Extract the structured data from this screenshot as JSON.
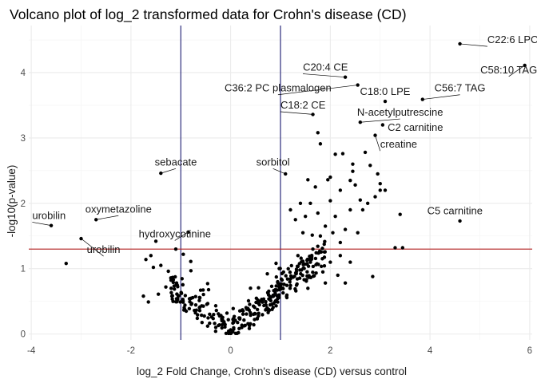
{
  "chart_data": {
    "type": "scatter",
    "title": "Volcano plot of log_2 transformed data for Crohn's disease (CD)",
    "xlabel": "log_2 Fold Change, Crohn's disease (CD) versus control",
    "ylabel": "-log10(p-value)",
    "xlim": [
      -4.05,
      6.05
    ],
    "ylim": [
      -0.09,
      4.72
    ],
    "xticks": [
      -4,
      -2,
      0,
      2,
      4,
      6
    ],
    "yticks": [
      0,
      1,
      2,
      3,
      4
    ],
    "grid": true,
    "legend": "none",
    "colors": {
      "points": "#000000",
      "fold_lines": "#191970",
      "pvalue_line": "#b22222",
      "leader": "#000000"
    },
    "reference_lines": {
      "vertical": [
        -1,
        1
      ],
      "horizontal": [
        1.3
      ]
    },
    "labels": [
      {
        "text": "C22:6 LPC",
        "x": 4.6,
        "y": 4.44,
        "tx": 5.15,
        "ty": 4.45,
        "anchor": "start"
      },
      {
        "text": "C58:10 TAG",
        "x": 5.9,
        "y": 4.11,
        "tx": 5.58,
        "ty": 3.99,
        "anchor": "middle"
      },
      {
        "text": "C20:4 CE",
        "x": 2.3,
        "y": 3.93,
        "tx": 1.45,
        "ty": 4.03,
        "anchor": "start"
      },
      {
        "text": "C36:2 PC plasmalogen",
        "x": 2.55,
        "y": 3.81,
        "tx": 0.95,
        "ty": 3.71,
        "anchor": "middle"
      },
      {
        "text": "C18:0 LPE",
        "x": 3.1,
        "y": 3.56,
        "tx": 3.1,
        "ty": 3.66,
        "anchor": "middle"
      },
      {
        "text": "C56:7 TAG",
        "x": 3.85,
        "y": 3.59,
        "tx": 4.6,
        "ty": 3.71,
        "anchor": "middle"
      },
      {
        "text": "C18:2 CE",
        "x": 1.65,
        "y": 3.36,
        "tx": 1.0,
        "ty": 3.45,
        "anchor": "start"
      },
      {
        "text": "N-acetylputrescine",
        "x": 2.6,
        "y": 3.24,
        "tx": 3.4,
        "ty": 3.34,
        "anchor": "middle"
      },
      {
        "text": "C2 carnitine",
        "x": 3.05,
        "y": 3.2,
        "tx": 3.15,
        "ty": 3.11,
        "anchor": "start"
      },
      {
        "text": "creatine",
        "x": 2.9,
        "y": 3.04,
        "tx": 3.0,
        "ty": 2.85,
        "anchor": "start"
      },
      {
        "text": "sebacate",
        "x": -1.4,
        "y": 2.46,
        "tx": -1.1,
        "ty": 2.58,
        "anchor": "middle"
      },
      {
        "text": "sorbitol",
        "x": 1.1,
        "y": 2.45,
        "tx": 0.85,
        "ty": 2.58,
        "anchor": "middle"
      },
      {
        "text": "C5 carnitine",
        "x": 4.6,
        "y": 1.73,
        "tx": 4.5,
        "ty": 1.83,
        "anchor": "middle"
      },
      {
        "text": "oxymetazoline",
        "x": -2.7,
        "y": 1.75,
        "tx": -2.25,
        "ty": 1.86,
        "anchor": "middle"
      },
      {
        "text": "urobilin",
        "x": -3.6,
        "y": 1.66,
        "tx": -3.98,
        "ty": 1.76,
        "anchor": "start"
      },
      {
        "text": "hydroxycotinine",
        "x": -0.85,
        "y": 1.56,
        "tx": -1.12,
        "ty": 1.48,
        "anchor": "middle"
      },
      {
        "text": "urobilin",
        "x": -3.0,
        "y": 1.46,
        "tx": -2.55,
        "ty": 1.24,
        "anchor": "middle"
      }
    ],
    "points": [
      [
        -3.6,
        1.66
      ],
      [
        -3.0,
        1.46
      ],
      [
        -2.7,
        1.75
      ],
      [
        -3.3,
        1.08
      ],
      [
        -1.4,
        2.46
      ],
      [
        -0.85,
        1.56
      ],
      [
        4.6,
        4.44
      ],
      [
        5.9,
        4.11
      ],
      [
        2.3,
        3.93
      ],
      [
        2.55,
        3.81
      ],
      [
        3.1,
        3.56
      ],
      [
        3.85,
        3.59
      ],
      [
        1.65,
        3.36
      ],
      [
        2.6,
        3.24
      ],
      [
        3.05,
        3.2
      ],
      [
        2.9,
        3.04
      ],
      [
        1.1,
        2.45
      ],
      [
        4.6,
        1.73
      ],
      [
        3.4,
        1.83
      ],
      [
        3.3,
        1.32
      ],
      [
        3.45,
        1.32
      ],
      [
        2.85,
        0.88
      ],
      [
        2.3,
        0.78
      ],
      [
        2.75,
        2.0
      ],
      [
        3.1,
        2.2
      ],
      [
        2.2,
        1.2
      ],
      [
        -1.5,
        1.42
      ],
      [
        -1.7,
        1.14
      ],
      [
        -1.6,
        1.2
      ],
      [
        -1.4,
        1.05
      ],
      [
        -1.1,
        1.3
      ],
      [
        -1.25,
        0.96
      ],
      [
        -1.55,
        1.02
      ],
      [
        -1.65,
        0.49
      ],
      [
        -1.3,
        0.72
      ],
      [
        -1.05,
        0.58
      ],
      [
        -1.75,
        0.58
      ],
      [
        -1.15,
        0.83
      ],
      [
        -1.45,
        0.61
      ],
      [
        -0.95,
        1.22
      ],
      [
        -0.8,
        1.11
      ],
      [
        1.75,
        3.08
      ],
      [
        1.8,
        2.91
      ],
      [
        2.1,
        2.75
      ],
      [
        2.25,
        2.76
      ],
      [
        1.6,
        2.0
      ],
      [
        1.95,
        2.36
      ],
      [
        2.45,
        2.49
      ],
      [
        2.4,
        2.35
      ],
      [
        2.5,
        2.28
      ],
      [
        2.0,
        2.04
      ],
      [
        1.7,
        2.25
      ],
      [
        1.55,
        2.36
      ],
      [
        2.2,
        2.2
      ],
      [
        2.0,
        2.4
      ],
      [
        2.7,
        2.78
      ],
      [
        2.8,
        2.58
      ],
      [
        3.0,
        2.2
      ],
      [
        2.65,
        1.9
      ],
      [
        2.4,
        1.9
      ],
      [
        2.1,
        1.8
      ],
      [
        1.9,
        1.65
      ],
      [
        2.55,
        1.55
      ],
      [
        1.8,
        1.5
      ],
      [
        2.2,
        1.4
      ],
      [
        2.4,
        1.1
      ],
      [
        2.0,
        1.1
      ],
      [
        1.85,
        0.95
      ],
      [
        2.9,
        2.1
      ],
      [
        2.95,
        2.45
      ],
      [
        2.45,
        2.6
      ],
      [
        3.0,
        2.3
      ],
      [
        1.5,
        1.8
      ],
      [
        1.45,
        1.55
      ],
      [
        1.65,
        1.3
      ],
      [
        2.3,
        1.6
      ],
      [
        1.3,
        1.75
      ],
      [
        1.2,
        1.9
      ],
      [
        1.4,
        2.0
      ],
      [
        1.6,
        1.1
      ],
      [
        1.55,
        0.7
      ],
      [
        1.9,
        0.78
      ],
      [
        2.15,
        0.9
      ],
      [
        1.35,
        1.2
      ],
      [
        2.6,
        2.05
      ],
      [
        2.05,
        1.55
      ],
      [
        1.75,
        1.85
      ]
    ],
    "random_cloud": {
      "count": 330,
      "seed": 7,
      "xrange": [
        -1.2,
        1.9
      ]
    }
  }
}
